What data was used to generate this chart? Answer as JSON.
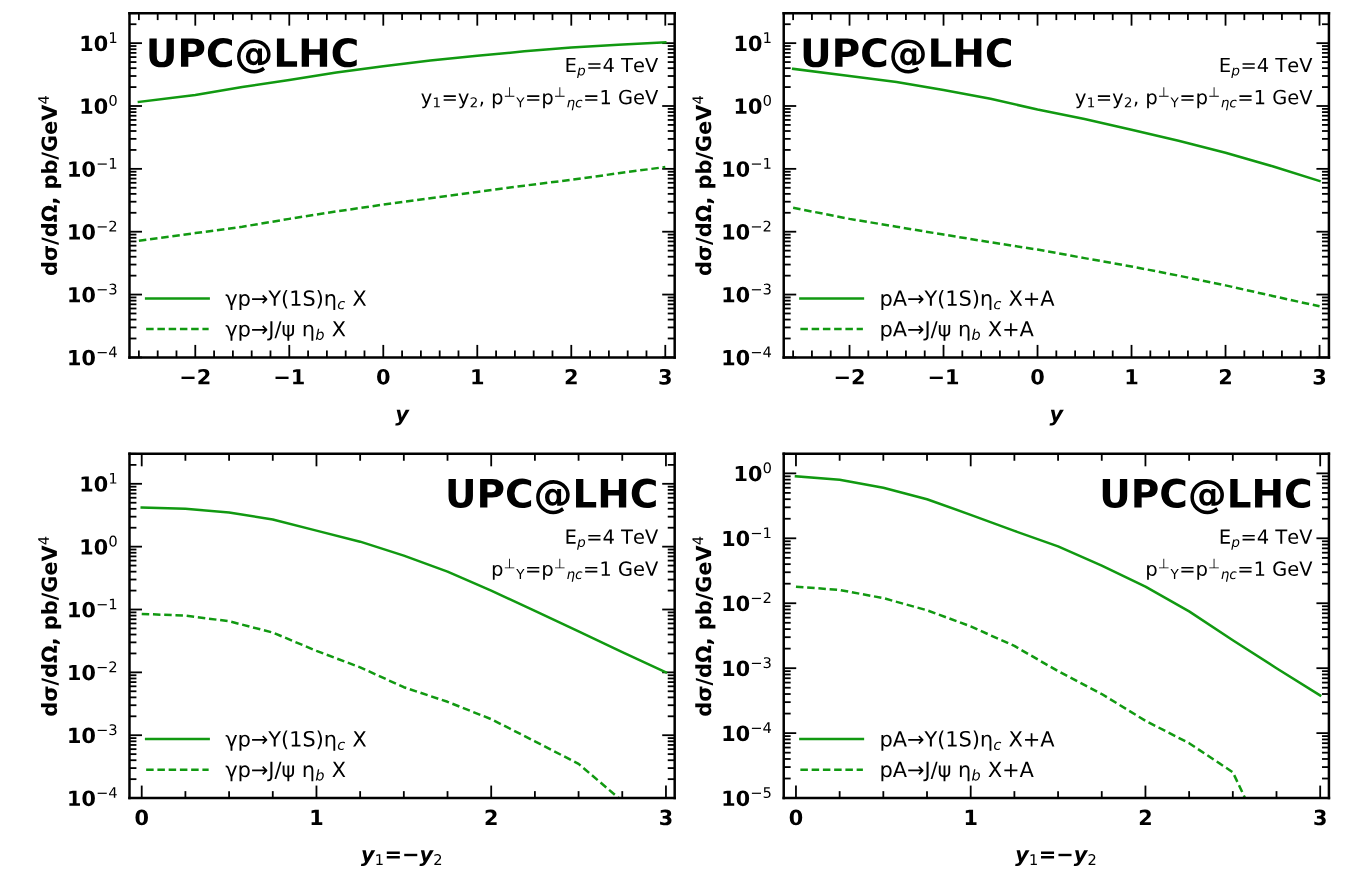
{
  "chart_data": [
    {
      "type": "line",
      "xlabel": "y",
      "ylabel": "dσ/dΩ, pb/GeV$^{4}$",
      "log": "y",
      "legend": "bottom left",
      "grid": false,
      "annotations": [
        "UPC@LHC",
        "E$_{p}$=4 TeV",
        "y$_{1}$=y$_{2}$, p$^{⊥}$$_{Υ}$=p$^{⊥}$$_{ηc}$=1 GeV"
      ],
      "xlim": [
        -2.7,
        3.1
      ],
      "xticks": [
        -2,
        -1,
        0,
        1,
        2,
        3
      ],
      "ylim": [
        0.0001,
        30
      ],
      "yticks": [
        {
          "value": 0.0001,
          "label": "10$^{−4}$"
        },
        {
          "value": 0.001,
          "label": "10$^{−3}$"
        },
        {
          "value": 0.01,
          "label": "10$^{−2}$"
        },
        {
          "value": 0.1,
          "label": "10$^{−1}$"
        },
        {
          "value": 1,
          "label": "10$^{0}$"
        },
        {
          "value": 10,
          "label": "10$^{1}$"
        }
      ],
      "x": [
        -2.6,
        -2,
        -1.5,
        -1,
        -0.5,
        0,
        0.5,
        1,
        1.5,
        2,
        2.5,
        3
      ],
      "series": [
        {
          "name": "γp→Υ(1S)η$_{c}$ X",
          "color": "#119911",
          "line_style": "solid",
          "values": [
            1.16,
            1.5,
            2.0,
            2.6,
            3.4,
            4.3,
            5.3,
            6.3,
            7.4,
            8.5,
            9.4,
            10.3
          ]
        },
        {
          "name": "γp→J/ψ η$_{b}$ X",
          "color": "#119911",
          "line_style": "dashed",
          "values": [
            0.0072,
            0.0095,
            0.012,
            0.016,
            0.021,
            0.027,
            0.034,
            0.043,
            0.054,
            0.067,
            0.085,
            0.107
          ]
        }
      ]
    },
    {
      "type": "line",
      "xlabel": "y",
      "ylabel": "dσ/dΩ, pb/GeV$^{4}$",
      "log": "y",
      "legend": "bottom left",
      "grid": false,
      "annotations": [
        "UPC@LHC",
        "E$_{p}$=4 TeV",
        "y$_{1}$=y$_{2}$, p$^{⊥}$$_{Υ}$=p$^{⊥}$$_{ηc}$=1 GeV"
      ],
      "xlim": [
        -2.7,
        3.1
      ],
      "xticks": [
        -2,
        -1,
        0,
        1,
        2,
        3
      ],
      "ylim": [
        0.0001,
        30
      ],
      "yticks": [
        {
          "value": 0.0001,
          "label": "10$^{−4}$"
        },
        {
          "value": 0.001,
          "label": "10$^{−3}$"
        },
        {
          "value": 0.01,
          "label": "10$^{−2}$"
        },
        {
          "value": 0.1,
          "label": "10$^{−1}$"
        },
        {
          "value": 1,
          "label": "10$^{0}$"
        },
        {
          "value": 10,
          "label": "10$^{1}$"
        }
      ],
      "x": [
        -2.6,
        -2,
        -1.5,
        -1,
        -0.5,
        0,
        0.5,
        1,
        1.5,
        2,
        2.5,
        3
      ],
      "series": [
        {
          "name": "pA→Υ(1S)η$_{c}$ X+A",
          "color": "#119911",
          "line_style": "solid",
          "values": [
            3.9,
            3.0,
            2.4,
            1.8,
            1.3,
            0.88,
            0.62,
            0.42,
            0.28,
            0.18,
            0.11,
            0.064
          ]
        },
        {
          "name": "pA→J/ψ η$_{b}$ X+A",
          "color": "#119911",
          "line_style": "dashed",
          "values": [
            0.024,
            0.016,
            0.012,
            0.009,
            0.0068,
            0.0052,
            0.0038,
            0.0028,
            0.002,
            0.0014,
            0.00095,
            0.00065
          ]
        }
      ]
    },
    {
      "type": "line",
      "xlabel": "y$_{1}$=−y$_{2}$",
      "ylabel": "dσ/dΩ, pb/GeV$^{4}$",
      "log": "y",
      "legend": "bottom left",
      "grid": false,
      "annotations": [
        "UPC@LHC",
        "E$_{p}$=4 TeV",
        "p$^{⊥}$$_{Υ}$=p$^{⊥}$$_{ηc}$=1 GeV"
      ],
      "xlim": [
        -0.07,
        3.05
      ],
      "xticks": [
        0,
        1,
        2,
        3
      ],
      "ylim": [
        0.0001,
        30
      ],
      "yticks": [
        {
          "value": 0.0001,
          "label": "10$^{−4}$"
        },
        {
          "value": 0.001,
          "label": "10$^{−3}$"
        },
        {
          "value": 0.01,
          "label": "10$^{−2}$"
        },
        {
          "value": 0.1,
          "label": "10$^{−1}$"
        },
        {
          "value": 1,
          "label": "10$^{0}$"
        },
        {
          "value": 10,
          "label": "10$^{1}$"
        }
      ],
      "series": [
        {
          "name": "γp→Υ(1S)η$_{c}$ X",
          "color": "#119911",
          "line_style": "solid",
          "x": [
            0,
            0.25,
            0.5,
            0.75,
            1,
            1.25,
            1.5,
            1.75,
            2,
            2.25,
            2.5,
            2.75,
            3
          ],
          "values": [
            4.2,
            4.0,
            3.5,
            2.7,
            1.8,
            1.2,
            0.72,
            0.4,
            0.2,
            0.095,
            0.045,
            0.021,
            0.01
          ]
        },
        {
          "name": "γp→J/ψ η$_{b}$ X",
          "color": "#119911",
          "line_style": "dashed",
          "x": [
            0,
            0.25,
            0.5,
            0.75,
            1,
            1.25,
            1.5,
            1.75,
            2,
            2.25,
            2.5,
            2.73
          ],
          "values": [
            0.085,
            0.08,
            0.065,
            0.043,
            0.022,
            0.012,
            0.0058,
            0.0034,
            0.0018,
            0.0008,
            0.00035,
            0.0001
          ]
        }
      ]
    },
    {
      "type": "line",
      "xlabel": "y$_{1}$=−y$_{2}$",
      "ylabel": "dσ/dΩ, pb/GeV$^{4}$",
      "log": "y",
      "legend": "bottom left",
      "grid": false,
      "annotations": [
        "UPC@LHC",
        "E$_{p}$=4 TeV",
        "p$^{⊥}$$_{Υ}$=p$^{⊥}$$_{ηc}$=1 GeV"
      ],
      "xlim": [
        -0.07,
        3.05
      ],
      "xticks": [
        0,
        1,
        2,
        3
      ],
      "ylim": [
        1e-05,
        2
      ],
      "yticks": [
        {
          "value": 1e-05,
          "label": "10$^{−5}$"
        },
        {
          "value": 0.0001,
          "label": "10$^{−4}$"
        },
        {
          "value": 0.001,
          "label": "10$^{−3}$"
        },
        {
          "value": 0.01,
          "label": "10$^{−2}$"
        },
        {
          "value": 0.1,
          "label": "10$^{−1}$"
        },
        {
          "value": 1,
          "label": "10$^{0}$"
        }
      ],
      "series": [
        {
          "name": "pA→Υ(1S)η$_{c}$ X+A",
          "color": "#119911",
          "line_style": "solid",
          "x": [
            0,
            0.25,
            0.5,
            0.75,
            1,
            1.25,
            1.5,
            1.75,
            2,
            2.25,
            2.5,
            2.75,
            3
          ],
          "values": [
            0.9,
            0.8,
            0.6,
            0.4,
            0.23,
            0.13,
            0.075,
            0.038,
            0.018,
            0.0075,
            0.0027,
            0.001,
            0.00038
          ]
        },
        {
          "name": "pA→J/ψ η$_{b}$ X+A",
          "color": "#119911",
          "line_style": "dashed",
          "x": [
            0,
            0.25,
            0.5,
            0.75,
            1,
            1.25,
            1.5,
            1.75,
            2,
            2.25,
            2.5,
            2.57
          ],
          "values": [
            0.018,
            0.016,
            0.012,
            0.0078,
            0.0044,
            0.0022,
            0.0009,
            0.0004,
            0.000155,
            7e-05,
            2.5e-05,
            1e-05
          ]
        }
      ]
    }
  ]
}
